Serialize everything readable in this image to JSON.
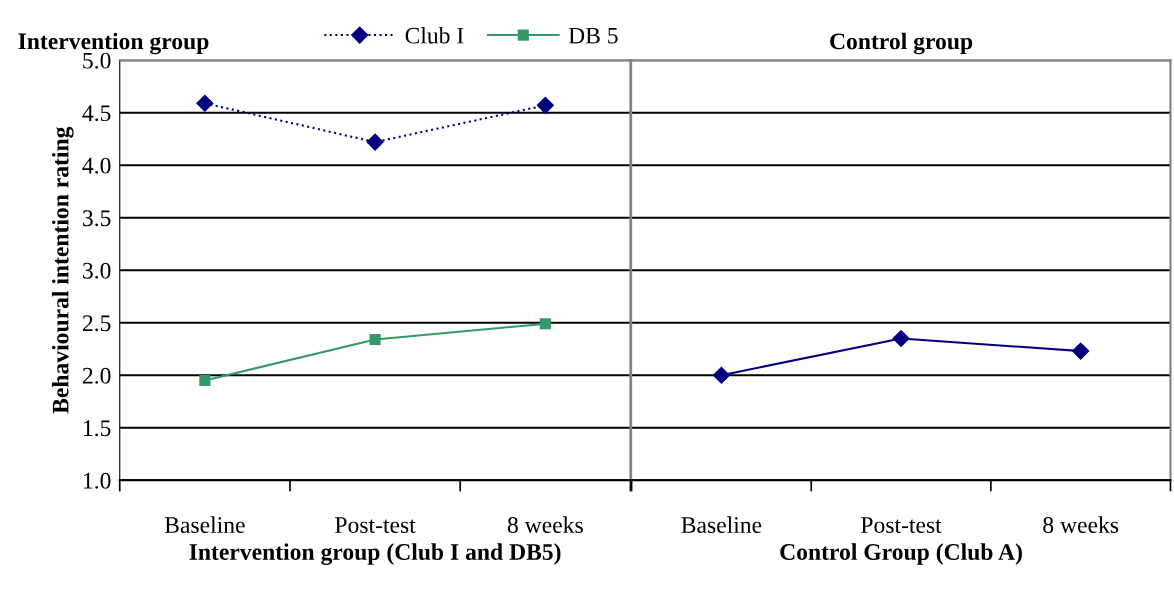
{
  "chart_data": [
    {
      "type": "line",
      "title": "Intervention group",
      "xlabel": "Intervention group (Club I and DB5)",
      "ylabel": "Behavioural intention rating",
      "categories": [
        "Baseline",
        "Post-test",
        "8 weeks"
      ],
      "series": [
        {
          "name": "Club I",
          "color": "#000080",
          "values": [
            4.59,
            4.22,
            4.57
          ],
          "marker": "diamond",
          "line_style": "dotted"
        },
        {
          "name": "DB 5",
          "color": "#339966",
          "values": [
            1.95,
            2.34,
            2.49
          ],
          "marker": "square",
          "line_style": "solid"
        }
      ],
      "ylim": [
        1.0,
        5.0
      ],
      "yticks": [
        {
          "value": 1.0,
          "label": "1.0"
        },
        {
          "value": 1.5,
          "label": "1.5"
        },
        {
          "value": 2.0,
          "label": "2.0"
        },
        {
          "value": 2.5,
          "label": "2.5"
        },
        {
          "value": 3.0,
          "label": "3.0"
        },
        {
          "value": 3.5,
          "label": "3.5"
        },
        {
          "value": 4.0,
          "label": "4.0"
        },
        {
          "value": 4.5,
          "label": "4.5"
        },
        {
          "value": 5.0,
          "label": "5.0"
        }
      ],
      "grid": "y",
      "legend": "top"
    },
    {
      "type": "line",
      "title": "Control group",
      "xlabel": "Control Group (Club A)",
      "categories": [
        "Baseline",
        "Post-test",
        "8 weeks"
      ],
      "series": [
        {
          "color": "#000080",
          "values": [
            2.0,
            2.35,
            2.23
          ],
          "marker": "diamond",
          "line_style": "solid"
        }
      ],
      "ylim": [
        1.0,
        5.0
      ],
      "yticks": [
        {
          "value": 1.0,
          "label": null
        },
        {
          "value": 1.5,
          "label": null
        },
        {
          "value": 2.0,
          "label": null
        },
        {
          "value": 2.5,
          "label": null
        },
        {
          "value": 3.0,
          "label": null
        },
        {
          "value": 3.5,
          "label": null
        },
        {
          "value": 4.0,
          "label": null
        },
        {
          "value": 4.5,
          "label": null
        },
        {
          "value": 5.0,
          "label": null
        }
      ],
      "grid": "y",
      "tick_labels": "x",
      "legend": false
    }
  ]
}
